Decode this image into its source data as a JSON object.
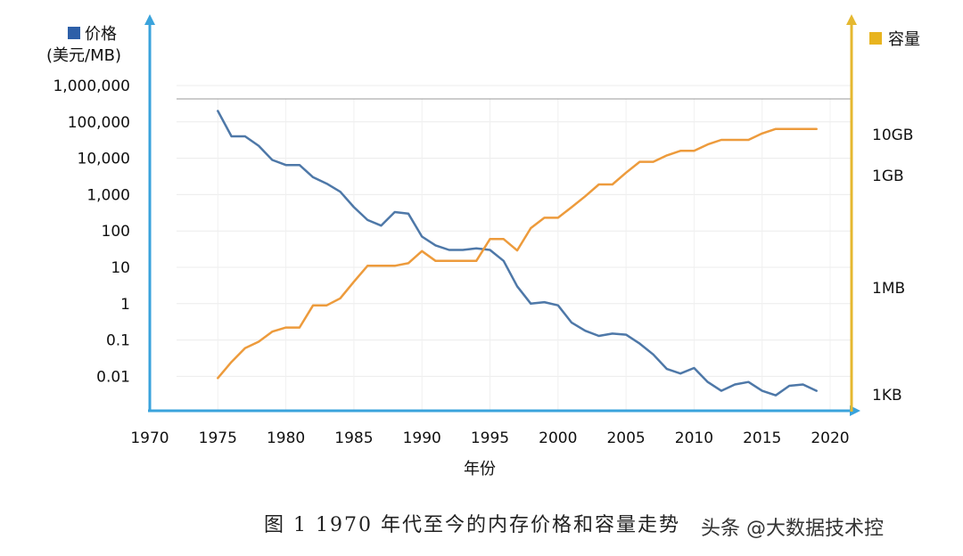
{
  "chart_data": {
    "type": "line",
    "title": "",
    "caption": "图 1 1970 年代至今的内存价格和容量走势",
    "xlabel": "年份",
    "left_axis": {
      "legend_label": "价格",
      "unit_label": "(美元/MB)",
      "scale": "log",
      "range": [
        0.001,
        1000000
      ],
      "tick_labels": [
        "1,000,000",
        "100,000",
        "10,000",
        "1,000",
        "100",
        "10",
        "1",
        "0.1",
        "0.01"
      ],
      "tick_values": [
        1000000,
        100000,
        10000,
        1000,
        100,
        10,
        1,
        0.1,
        0.01
      ]
    },
    "right_axis": {
      "legend_label": "容量",
      "tick_labels": [
        "10GB",
        "1GB",
        "1MB",
        "1KB"
      ]
    },
    "x_ticks": [
      "1970",
      "1975",
      "1980",
      "1985",
      "1990",
      "1995",
      "2000",
      "2005",
      "2010",
      "2015",
      "2020"
    ],
    "x_tick_values": [
      1970,
      1975,
      1980,
      1985,
      1990,
      1995,
      2000,
      2005,
      2010,
      2015,
      2020
    ],
    "xlim": [
      1970,
      2020
    ],
    "grid": true,
    "series": [
      {
        "name": "价格",
        "color": "#4e78a8",
        "axis": "left",
        "x": [
          1975,
          1976,
          1977,
          1978,
          1979,
          1980,
          1981,
          1982,
          1983,
          1984,
          1985,
          1986,
          1987,
          1988,
          1989,
          1990,
          1991,
          1992,
          1993,
          1994,
          1995,
          1996,
          1997,
          1998,
          1999,
          2000,
          2001,
          2002,
          2003,
          2004,
          2005,
          2006,
          2007,
          2008,
          2009,
          2010,
          2011,
          2012,
          2013,
          2014,
          2015,
          2016,
          2017,
          2018,
          2019
        ],
        "y": [
          200000,
          40000,
          40000,
          22000,
          9000,
          6500,
          6500,
          3000,
          2000,
          1200,
          450,
          200,
          140,
          330,
          300,
          70,
          40,
          30,
          30,
          33,
          30,
          15,
          3,
          1,
          1.1,
          0.9,
          0.3,
          0.18,
          0.13,
          0.15,
          0.14,
          0.08,
          0.04,
          0.016,
          0.012,
          0.017,
          0.007,
          0.004,
          0.006,
          0.007,
          0.004,
          0.003,
          0.0055,
          0.006,
          0.004
        ]
      },
      {
        "name": "容量",
        "color": "#ed9b3c",
        "axis": "right",
        "x": [
          1975,
          1976,
          1977,
          1978,
          1979,
          1980,
          1981,
          1982,
          1983,
          1984,
          1985,
          1986,
          1987,
          1988,
          1989,
          1990,
          1991,
          1992,
          1993,
          1994,
          1995,
          1996,
          1997,
          1998,
          1999,
          2000,
          2001,
          2002,
          2003,
          2004,
          2005,
          2006,
          2007,
          2008,
          2009,
          2010,
          2011,
          2012,
          2013,
          2014,
          2015,
          2016,
          2017,
          2018,
          2019
        ],
        "y": [
          0.009,
          0.025,
          0.06,
          0.09,
          0.17,
          0.22,
          0.22,
          0.9,
          0.9,
          1.4,
          4,
          11,
          11,
          11,
          13,
          28,
          15,
          15,
          15,
          15,
          60,
          60,
          29,
          120,
          230,
          230,
          450,
          900,
          1900,
          1900,
          4000,
          8000,
          8000,
          12000,
          16000,
          16000,
          24000,
          32000,
          32000,
          32000,
          48000,
          64000,
          64000,
          64000,
          64000
        ]
      }
    ]
  },
  "watermark": "头条 @大数据技术控"
}
